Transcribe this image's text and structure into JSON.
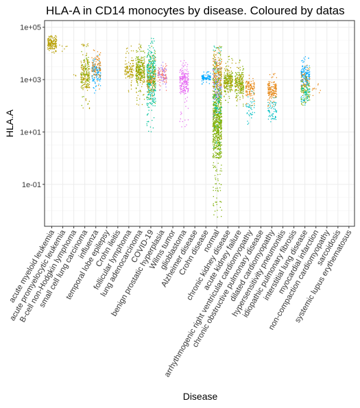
{
  "chart_data": {
    "type": "scatter",
    "title": "HLA-A in CD14 monocytes by disease. Coloured by datas",
    "xlabel": "Disease",
    "ylabel": "HLA.A",
    "y_scale": "log10",
    "ylim": [
      0.0025,
      180000
    ],
    "yticks": [
      {
        "value": 100000,
        "label": "1e+05"
      },
      {
        "value": 1000,
        "label": "1e+03"
      },
      {
        "value": 10,
        "label": "1e+01"
      },
      {
        "value": 0.1,
        "label": "1e-01"
      }
    ],
    "grid": true,
    "legend": "none",
    "categories": [
      "acute myeloid leukemia",
      "acute promyelocytic leukemia",
      "B-cell non-Hodgkin lymphoma",
      "small cell lung carcinoma",
      "influenza",
      "temporal lobe epilepsy",
      "Crohn ileitis",
      "follicular lymphoma",
      "lung adenocarcinoma",
      "COVID-19",
      "benign prostatic hyperplasia",
      "Wilms tumor",
      "glioblastoma",
      "Alzheimer disease",
      "Crohn disease",
      "normal",
      "chronic kidney disease",
      "acute kidney failure",
      "arrhythmogenic right ventricular cardiomyopathy",
      "chronic obstructive pulmonary disease",
      "dilated cardiomyopathy",
      "hypersensitivity pneumonitis",
      "idiopathic pulmonary fibrosis",
      "interstitial lung disease",
      "myocardial infarction",
      "non-compaction cardiomyopathy",
      "sarcoidosis",
      "systemic lupus erythematosus"
    ],
    "series": [
      {
        "category": "acute myeloid leukemia",
        "color": "#b79f00",
        "median": 25000,
        "q_low": 15000,
        "q_high": 40000,
        "min": 10000,
        "max": 50000,
        "n": 160
      },
      {
        "category": "acute promyelocytic leukemia",
        "color": "#b79f00",
        "median": 18000,
        "q_low": 14000,
        "q_high": 24000,
        "min": 12000,
        "max": 25000,
        "n": 6
      },
      {
        "category": "B-cell non-Hodgkin lymphoma",
        "color": "#b79f00",
        "median": 1500,
        "q_low": 1300,
        "q_high": 1800,
        "min": 1200,
        "max": 2000,
        "n": 3
      },
      {
        "category": "small cell lung carcinoma",
        "color": "#b79f00",
        "median": 1200,
        "q_low": 500,
        "q_high": 6000,
        "min": 80,
        "max": 30000,
        "n": 160
      },
      {
        "category": "small cell lung carcinoma",
        "color": "#7cae00",
        "median": 1500,
        "q_low": 700,
        "q_high": 8000,
        "min": 100,
        "max": 20000,
        "n": 70
      },
      {
        "category": "influenza",
        "color": "#00a9ff",
        "median": 2000,
        "q_low": 900,
        "q_high": 4000,
        "min": 300,
        "max": 10000,
        "n": 120
      },
      {
        "category": "influenza",
        "color": "#e68613",
        "median": 3000,
        "q_low": 1200,
        "q_high": 8000,
        "min": 300,
        "max": 15000,
        "n": 90
      },
      {
        "category": "follicular lymphoma",
        "color": "#b79f00",
        "median": 2500,
        "q_low": 1000,
        "q_high": 6000,
        "min": 300,
        "max": 20000,
        "n": 110
      },
      {
        "category": "lung adenocarcinoma",
        "color": "#b79f00",
        "median": 2000,
        "q_low": 800,
        "q_high": 6000,
        "min": 100,
        "max": 25000,
        "n": 160
      },
      {
        "category": "lung adenocarcinoma",
        "color": "#7cae00",
        "median": 2500,
        "q_low": 900,
        "q_high": 8000,
        "min": 150,
        "max": 25000,
        "n": 120
      },
      {
        "category": "COVID-19",
        "color": "#00c19a",
        "median": 1200,
        "q_low": 100,
        "q_high": 10000,
        "min": 10,
        "max": 40000,
        "n": 320
      },
      {
        "category": "COVID-19",
        "color": "#e68613",
        "median": 900,
        "q_low": 350,
        "q_high": 2500,
        "min": 150,
        "max": 8000,
        "n": 90
      },
      {
        "category": "COVID-19",
        "color": "#7cae00",
        "median": 1500,
        "q_low": 500,
        "q_high": 8000,
        "min": 100,
        "max": 20000,
        "n": 80
      },
      {
        "category": "benign prostatic hyperplasia",
        "color": "#f8766d",
        "median": 1500,
        "q_low": 800,
        "q_high": 3000,
        "min": 400,
        "max": 6000,
        "n": 80
      },
      {
        "category": "benign prostatic hyperplasia",
        "color": "#ab82ff",
        "median": 1600,
        "q_low": 900,
        "q_high": 3000,
        "min": 400,
        "max": 5000,
        "n": 40
      },
      {
        "category": "glioblastoma",
        "color": "#e76bf3",
        "median": 900,
        "q_low": 300,
        "q_high": 2500,
        "min": 15,
        "max": 6000,
        "n": 220
      },
      {
        "category": "Crohn disease",
        "color": "#00a9ff",
        "median": 1200,
        "q_low": 1000,
        "q_high": 1600,
        "min": 700,
        "max": 2200,
        "n": 90
      },
      {
        "category": "normal",
        "color": "#7cae00",
        "median": 20,
        "q_low": 1,
        "q_high": 300,
        "min": 0.005,
        "max": 20000,
        "n": 650
      },
      {
        "category": "normal",
        "color": "#00c19a",
        "median": 300,
        "q_low": 50,
        "q_high": 3000,
        "min": 1,
        "max": 20000,
        "n": 150
      },
      {
        "category": "normal",
        "color": "#b79f00",
        "median": 1000,
        "q_low": 200,
        "q_high": 8000,
        "min": 5,
        "max": 20000,
        "n": 150
      },
      {
        "category": "normal",
        "color": "#e68613",
        "median": 2000,
        "q_low": 500,
        "q_high": 10000,
        "min": 50,
        "max": 20000,
        "n": 80
      },
      {
        "category": "normal",
        "color": "#ab82ff",
        "median": 800,
        "q_low": 200,
        "q_high": 5000,
        "min": 20,
        "max": 20000,
        "n": 60
      },
      {
        "category": "chronic kidney disease",
        "color": "#7cae00",
        "median": 800,
        "q_low": 350,
        "q_high": 2000,
        "min": 100,
        "max": 8000,
        "n": 150
      },
      {
        "category": "chronic kidney disease",
        "color": "#b79f00",
        "median": 900,
        "q_low": 400,
        "q_high": 2500,
        "min": 150,
        "max": 8000,
        "n": 80
      },
      {
        "category": "acute kidney failure",
        "color": "#7cae00",
        "median": 700,
        "q_low": 300,
        "q_high": 2000,
        "min": 100,
        "max": 6000,
        "n": 150
      },
      {
        "category": "acute kidney failure",
        "color": "#b79f00",
        "median": 800,
        "q_low": 350,
        "q_high": 2000,
        "min": 150,
        "max": 5000,
        "n": 70
      },
      {
        "category": "arrhythmogenic right ventricular cardiomyopathy",
        "color": "#e68613",
        "median": 500,
        "q_low": 250,
        "q_high": 900,
        "min": 100,
        "max": 2000,
        "n": 110
      },
      {
        "category": "arrhythmogenic right ventricular cardiomyopathy",
        "color": "#00bfc4",
        "median": 80,
        "q_low": 40,
        "q_high": 200,
        "min": 20,
        "max": 500,
        "n": 40
      },
      {
        "category": "dilated cardiomyopathy",
        "color": "#e68613",
        "median": 400,
        "q_low": 200,
        "q_high": 900,
        "min": 100,
        "max": 2000,
        "n": 150
      },
      {
        "category": "dilated cardiomyopathy",
        "color": "#00bfc4",
        "median": 60,
        "q_low": 30,
        "q_high": 150,
        "min": 10,
        "max": 400,
        "n": 60
      },
      {
        "category": "interstitial lung disease",
        "color": "#00a9ff",
        "median": 1500,
        "q_low": 600,
        "q_high": 3500,
        "min": 100,
        "max": 8000,
        "n": 160
      },
      {
        "category": "interstitial lung disease",
        "color": "#7cae00",
        "median": 400,
        "q_low": 200,
        "q_high": 900,
        "min": 100,
        "max": 3000,
        "n": 80
      },
      {
        "category": "interstitial lung disease",
        "color": "#00c19a",
        "median": 300,
        "q_low": 150,
        "q_high": 600,
        "min": 100,
        "max": 1500,
        "n": 50
      },
      {
        "category": "interstitial lung disease",
        "color": "#e68613",
        "median": 1000,
        "q_low": 500,
        "q_high": 2500,
        "min": 200,
        "max": 6000,
        "n": 40
      },
      {
        "category": "myocardial infarction",
        "color": "#e68613",
        "median": 500,
        "q_low": 350,
        "q_high": 700,
        "min": 250,
        "max": 900,
        "n": 10
      }
    ]
  }
}
